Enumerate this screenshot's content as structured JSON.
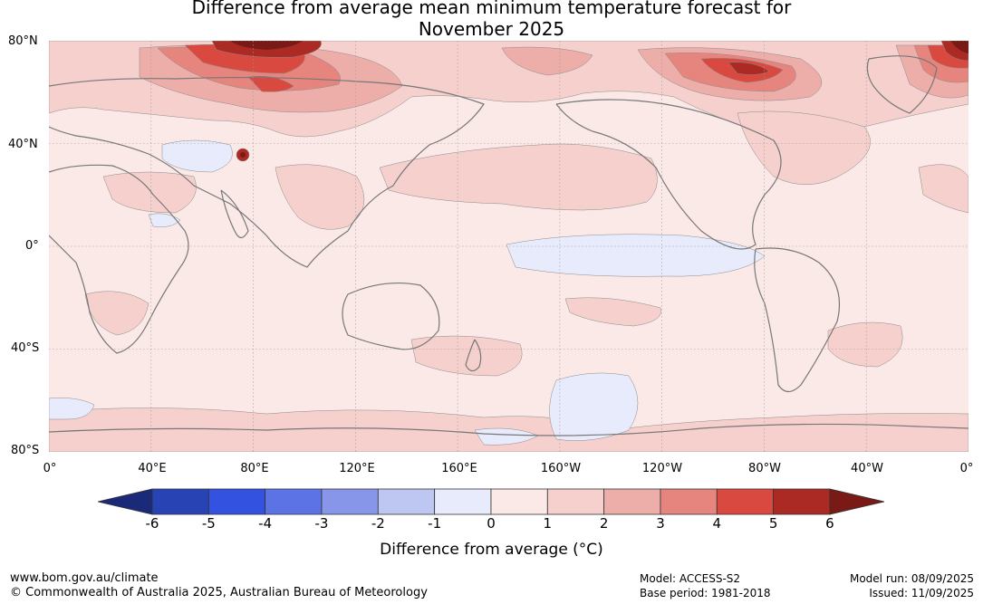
{
  "title": {
    "line1": "Difference from average mean minimum temperature forecast for",
    "line2": "November 2025"
  },
  "map": {
    "lat_labels": [
      "80°N",
      "40°N",
      "0°",
      "40°S",
      "80°S"
    ],
    "lat_values": [
      80,
      40,
      0,
      -40,
      -80
    ],
    "lon_labels": [
      "0°",
      "40°E",
      "80°E",
      "120°E",
      "160°E",
      "160°W",
      "120°W",
      "80°W",
      "40°W",
      "0°"
    ],
    "background_anomaly": "0 to 1",
    "colors": {
      "land_coast": "#777777",
      "gridline": "#999999"
    }
  },
  "colorbar": {
    "ticks": [
      "-6",
      "-5",
      "-4",
      "-3",
      "-2",
      "-1",
      "0",
      "1",
      "2",
      "3",
      "4",
      "5",
      "6"
    ],
    "bins": [
      {
        "range": "< -6",
        "color": "#1a2a78"
      },
      {
        "range": "-6 to -5",
        "color": "#2844b4"
      },
      {
        "range": "-5 to -4",
        "color": "#3452e0"
      },
      {
        "range": "-4 to -3",
        "color": "#5c73e6"
      },
      {
        "range": "-3 to -2",
        "color": "#8896ea"
      },
      {
        "range": "-2 to -1",
        "color": "#bec6f2"
      },
      {
        "range": "-1 to 0",
        "color": "#e8ebfb"
      },
      {
        "range": "0 to 1",
        "color": "#fbe9e7"
      },
      {
        "range": "1 to 2",
        "color": "#f5d0cd"
      },
      {
        "range": "2 to 3",
        "color": "#edaeaa"
      },
      {
        "range": "3 to 4",
        "color": "#e6847e"
      },
      {
        "range": "4 to 5",
        "color": "#d9493f"
      },
      {
        "range": "5 to 6",
        "color": "#ab2a23"
      },
      {
        "range": "> 6",
        "color": "#7a1a16"
      }
    ],
    "label": "Difference from average (°C)"
  },
  "footer": {
    "website": "www.bom.gov.au/climate",
    "copyright": "© Commonwealth of Australia 2025, Australian Bureau of Meteorology",
    "model": "Model: ACCESS-S2",
    "base_period": "Base period: 1981-2018",
    "model_run": "Model run: 08/09/2025",
    "issued": "Issued: 11/09/2025"
  }
}
